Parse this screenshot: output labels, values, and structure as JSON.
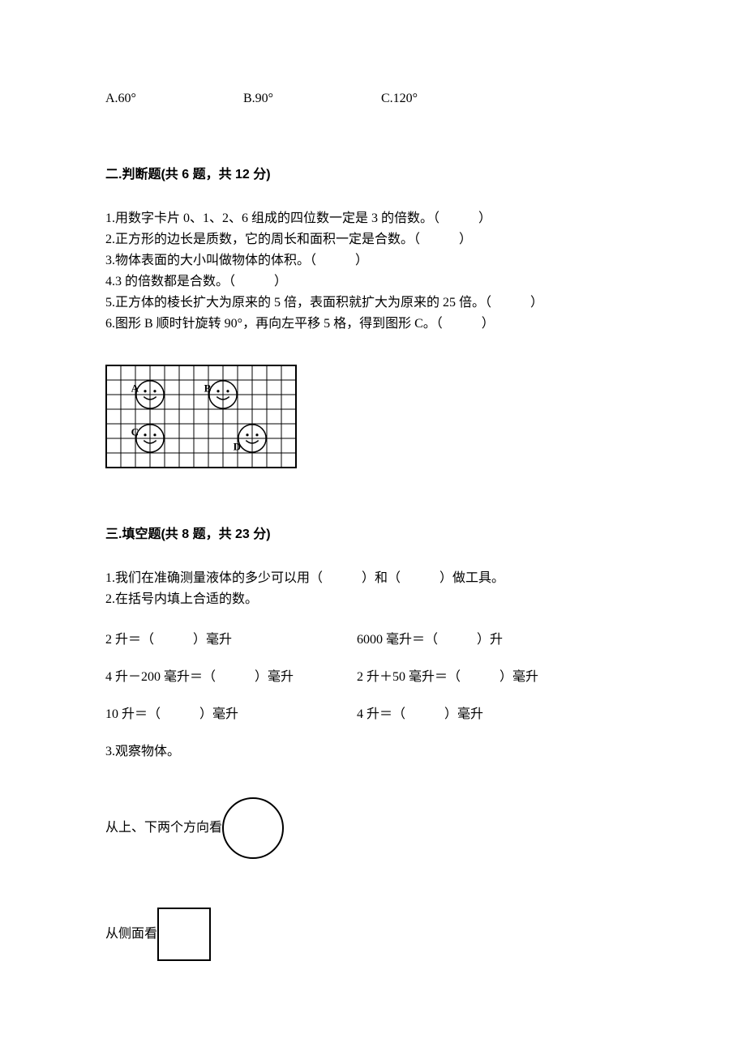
{
  "q_prev_choices": {
    "a": "A.60°",
    "b": "B.90°",
    "c": "C.120°"
  },
  "section2": {
    "title": "二.判断题(共 6 题，共 12 分)",
    "items": [
      "1.用数字卡片 0、1、2、6 组成的四位数一定是 3 的倍数。（　　　）",
      "2.正方形的边长是质数，它的周长和面积一定是合数。（　　　）",
      "3.物体表面的大小叫做物体的体积。（　　　）",
      "4.3 的倍数都是合数。（　　　）",
      "5.正方体的棱长扩大为原来的 5 倍，表面积就扩大为原来的 25 倍。（　　　）",
      "6.图形 B 顺时针旋转 90°，再向左平移 5 格，得到图形 C。（　　　）"
    ]
  },
  "grid": {
    "cols": 13,
    "rows": 7,
    "cell": 18,
    "stroke": "#000000",
    "labels": {
      "A": {
        "col": 1.7,
        "row": 1.8
      },
      "B": {
        "col": 6.7,
        "row": 1.8
      },
      "C": {
        "col": 1.7,
        "row": 4.8
      },
      "D": {
        "col": 8.7,
        "row": 5.8
      }
    }
  },
  "section3": {
    "title": "三.填空题(共 8 题，共 23 分)",
    "q1": "1.我们在准确测量液体的多少可以用（　　　）和（　　　）做工具。",
    "q2": "2.在括号内填上合适的数。",
    "pairs": [
      {
        "left": "2 升＝（　　　）毫升",
        "right": "6000 毫升＝（　　　）升"
      },
      {
        "left": "4 升－200 毫升＝（　　　）毫升",
        "right": "2 升＋50 毫升＝（　　　）毫升"
      },
      {
        "left": "10 升＝（　　　）毫升",
        "right": "4 升＝（　　　）毫升"
      }
    ],
    "q3": "3.观察物体。",
    "view_top_bottom": "从上、下两个方向看",
    "view_side": "从侧面看"
  }
}
